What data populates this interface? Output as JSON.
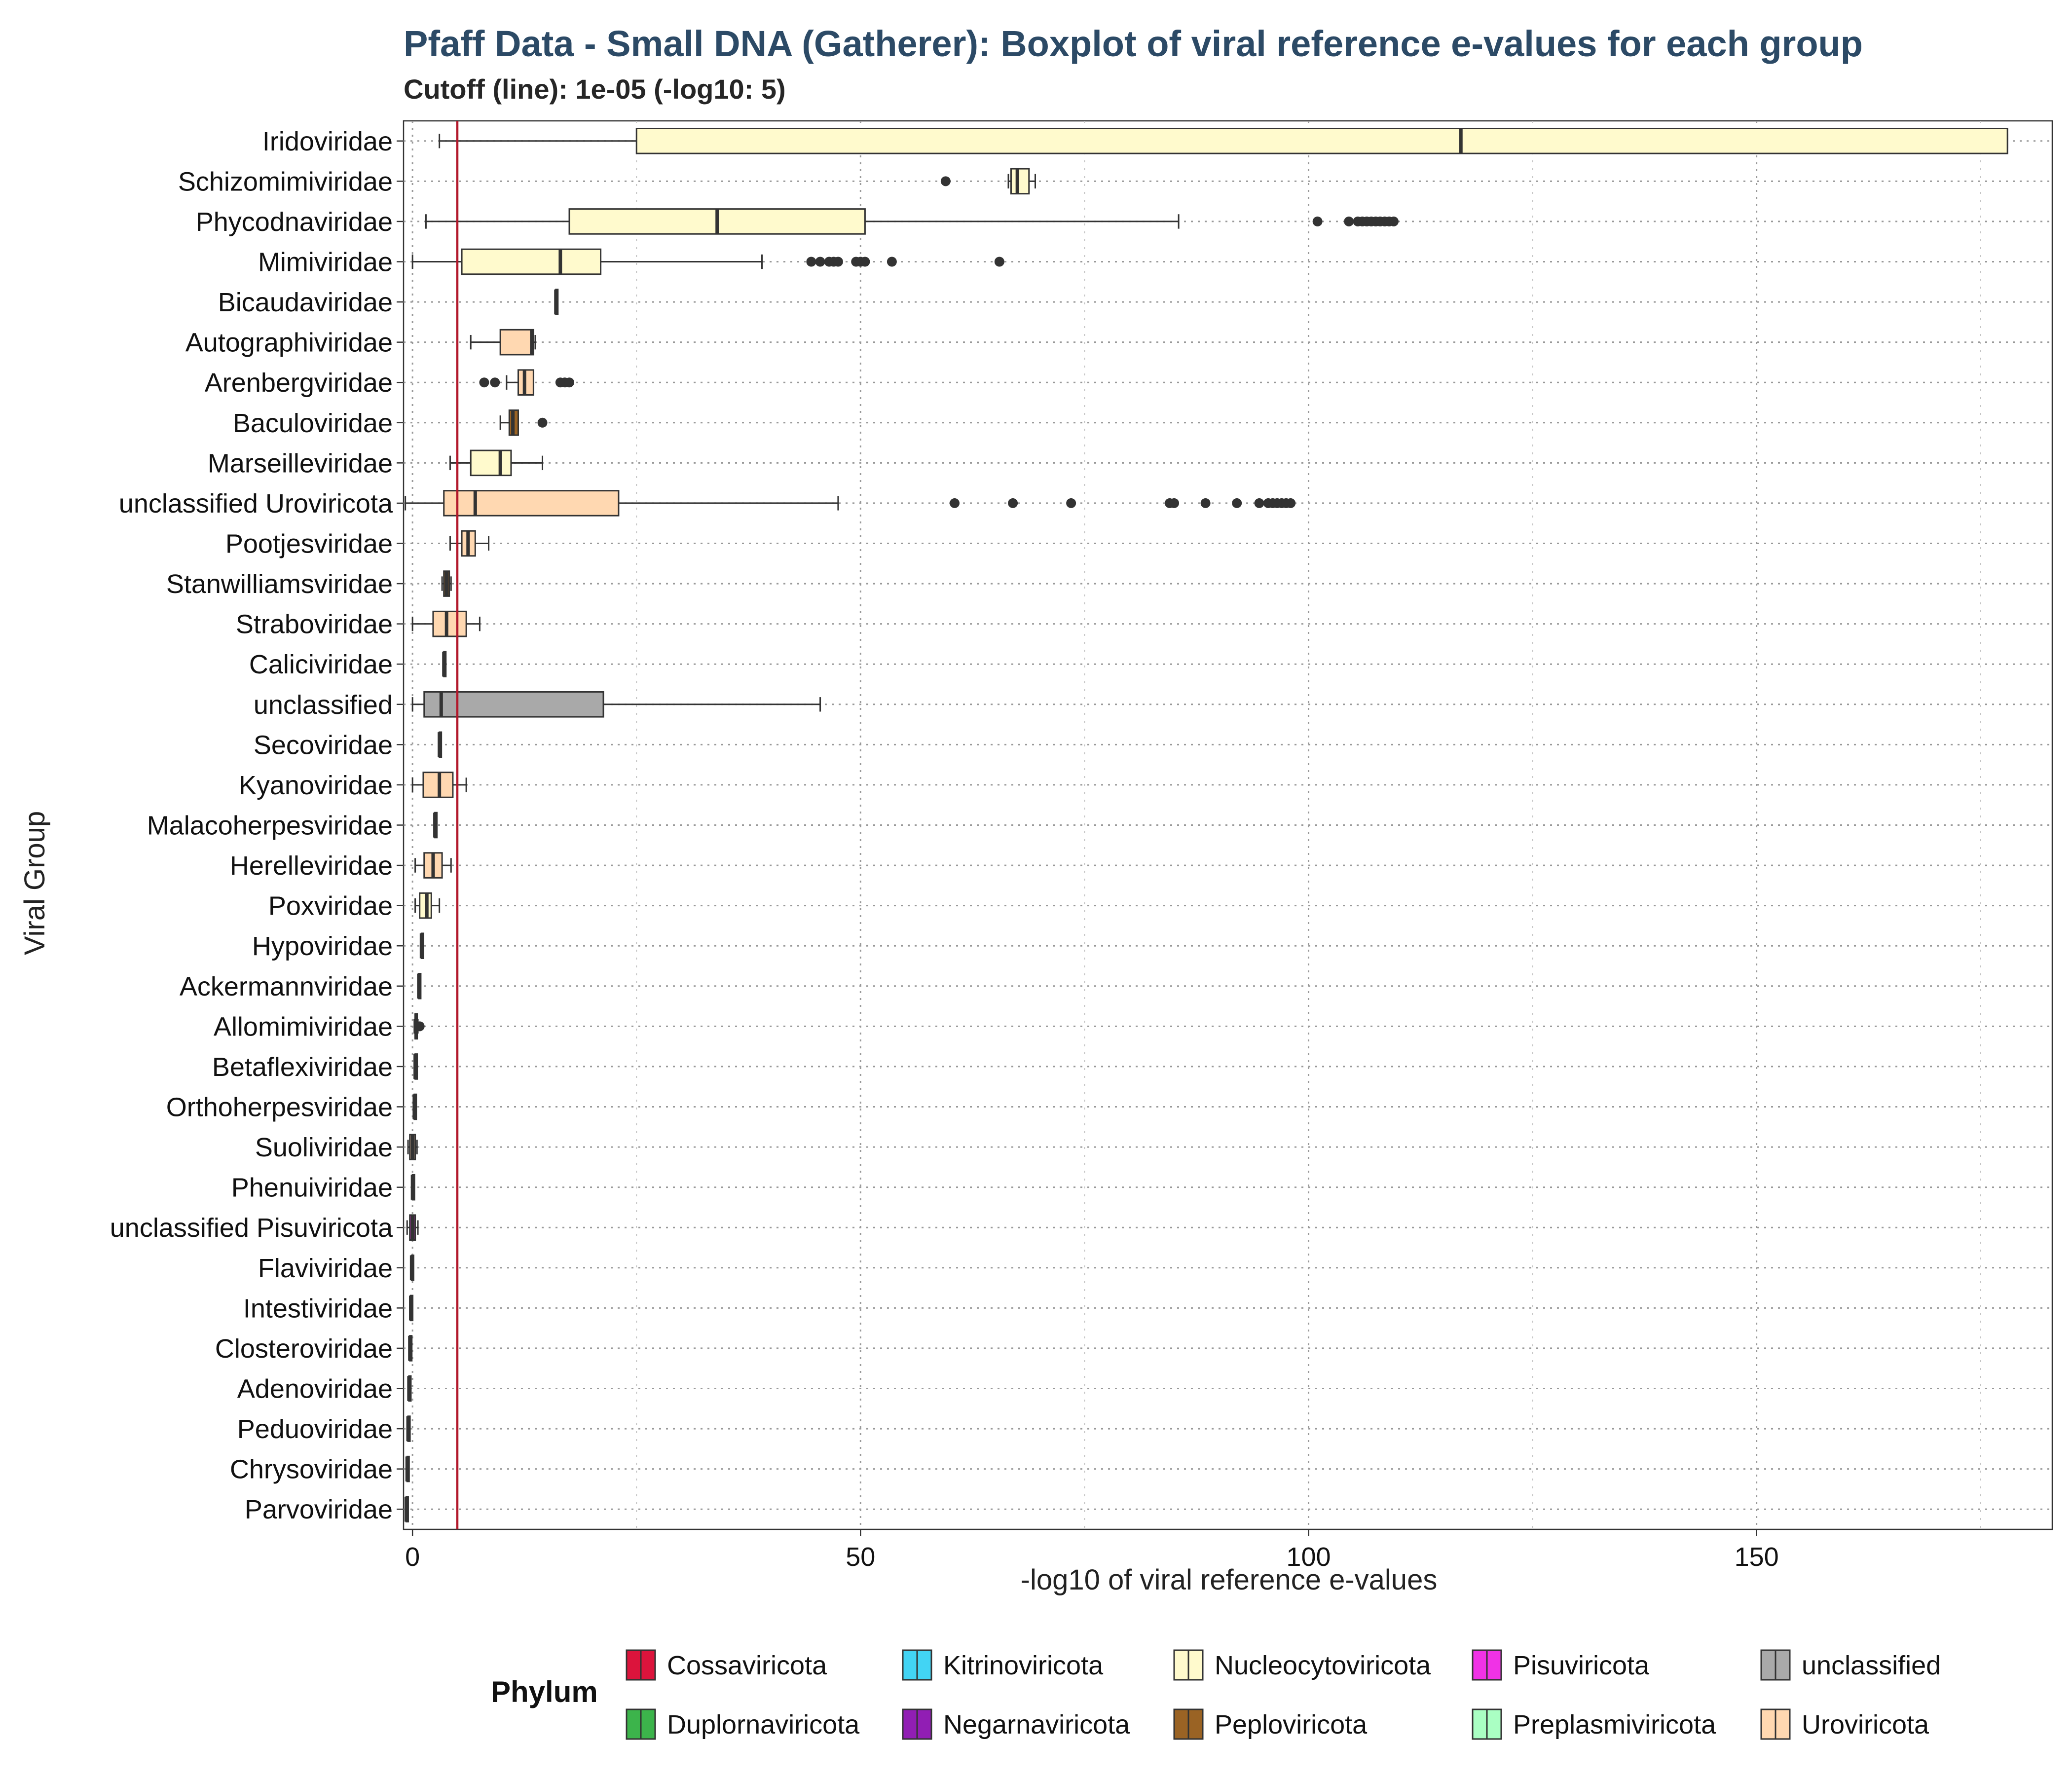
{
  "chart_data": {
    "type": "boxplot",
    "title": "Pfaff Data - Small DNA (Gatherer): Boxplot of viral reference e-values for each group",
    "subtitle": "Cutoff (line): 1e-05 (-log10: 5)",
    "xlabel": "-log10 of viral reference e-values",
    "ylabel": "Viral Group",
    "xlim": [
      -1,
      183
    ],
    "xticks": [
      0,
      50,
      100,
      150
    ],
    "grid": true,
    "cutoff": {
      "value": 5,
      "color": "#B2182B"
    },
    "legend": {
      "title": "Phylum",
      "position": "bottom",
      "items": [
        {
          "name": "Cossaviricota",
          "color": "#DC143C"
        },
        {
          "name": "Duplornaviricota",
          "color": "#3CB44B"
        },
        {
          "name": "Kitrinoviricota",
          "color": "#42D4F4"
        },
        {
          "name": "Negarnaviricota",
          "color": "#911EB4"
        },
        {
          "name": "Nucleocytoviricota",
          "color": "#FFFACD"
        },
        {
          "name": "Peploviricota",
          "color": "#9A6324"
        },
        {
          "name": "Pisuviricota",
          "color": "#F032E6"
        },
        {
          "name": "Preplasmiviricota",
          "color": "#AAFFC3"
        },
        {
          "name": "unclassified",
          "color": "#A9A9A9"
        },
        {
          "name": "Uroviricota",
          "color": "#FFD8B1"
        }
      ]
    },
    "groups": [
      {
        "name": "Iridoviridae",
        "phylum": "Nucleocytoviricota",
        "min": 3,
        "q1": 25,
        "median": 117,
        "q3": 178,
        "max": 178,
        "outliers": []
      },
      {
        "name": "Schizomimiviridae",
        "phylum": "Nucleocytoviricota",
        "min": 66.5,
        "q1": 66.8,
        "median": 67.5,
        "q3": 68.8,
        "max": 69.5,
        "outliers": [
          59.5
        ]
      },
      {
        "name": "Phycodnaviridae",
        "phylum": "Nucleocytoviricota",
        "min": 1.5,
        "q1": 17.5,
        "median": 34,
        "q3": 50.5,
        "max": 85.5,
        "outliers": [
          101,
          104.5,
          105.5,
          106,
          106.5,
          107,
          107.5,
          108,
          108.5,
          109,
          109.5
        ]
      },
      {
        "name": "Mimiviridae",
        "phylum": "Nucleocytoviricota",
        "min": 0,
        "q1": 5.5,
        "median": 16.5,
        "q3": 21,
        "max": 39,
        "outliers": [
          44.5,
          45.5,
          46.5,
          47,
          47.5,
          49.5,
          50,
          50.5,
          53.5,
          65.5
        ]
      },
      {
        "name": "Bicaudaviridae",
        "phylum": "unclassified",
        "min": 16,
        "q1": 16,
        "median": 16,
        "q3": 16,
        "max": 16,
        "outliers": []
      },
      {
        "name": "Autographiviridae",
        "phylum": "Uroviricota",
        "min": 6.5,
        "q1": 9.8,
        "median": 13.3,
        "q3": 13.5,
        "max": 13.7,
        "outliers": []
      },
      {
        "name": "Arenbergviridae",
        "phylum": "Uroviricota",
        "min": 10.5,
        "q1": 11.8,
        "median": 12.5,
        "q3": 13.5,
        "max": 13.5,
        "outliers": [
          8,
          9.2,
          16.5,
          17,
          17.5
        ]
      },
      {
        "name": "Baculoviridae",
        "phylum": "Peploviricota",
        "min": 9.8,
        "q1": 10.8,
        "median": 11.2,
        "q3": 11.8,
        "max": 11.8,
        "outliers": [
          14.5
        ]
      },
      {
        "name": "Marseilleviridae",
        "phylum": "Nucleocytoviricota",
        "min": 4.2,
        "q1": 6.5,
        "median": 9.8,
        "q3": 11,
        "max": 14.5,
        "outliers": []
      },
      {
        "name": "unclassified Uroviricota",
        "phylum": "Uroviricota",
        "min": -0.8,
        "q1": 3.5,
        "median": 7,
        "q3": 23,
        "max": 47.5,
        "outliers": [
          60.5,
          67,
          73.5,
          84.5,
          85,
          88.5,
          92,
          94.5,
          95.5,
          96,
          96.5,
          97,
          97.5,
          98
        ]
      },
      {
        "name": "Pootjesviridae",
        "phylum": "Uroviricota",
        "min": 4.2,
        "q1": 5.5,
        "median": 6.2,
        "q3": 7,
        "max": 8.5,
        "outliers": []
      },
      {
        "name": "Stanwilliamsviridae",
        "phylum": "Peploviricota",
        "min": 3.3,
        "q1": 3.5,
        "median": 3.8,
        "q3": 4.1,
        "max": 4.3,
        "outliers": []
      },
      {
        "name": "Straboviridae",
        "phylum": "Uroviricota",
        "min": 0,
        "q1": 2.3,
        "median": 3.8,
        "q3": 6,
        "max": 7.5,
        "outliers": []
      },
      {
        "name": "Caliciviridae",
        "phylum": "Pisuviricota",
        "min": 3.5,
        "q1": 3.5,
        "median": 3.5,
        "q3": 3.5,
        "max": 3.5,
        "outliers": []
      },
      {
        "name": "unclassified",
        "phylum": "unclassified",
        "min": 0,
        "q1": 1.3,
        "median": 3.2,
        "q3": 21.3,
        "max": 45.5,
        "outliers": []
      },
      {
        "name": "Secoviridae",
        "phylum": "Pisuviricota",
        "min": 3,
        "q1": 3,
        "median": 3,
        "q3": 3,
        "max": 3,
        "outliers": []
      },
      {
        "name": "Kyanoviridae",
        "phylum": "Uroviricota",
        "min": 0,
        "q1": 1.2,
        "median": 3,
        "q3": 4.5,
        "max": 6,
        "outliers": []
      },
      {
        "name": "Malacoherpesviridae",
        "phylum": "Peploviricota",
        "min": 2.5,
        "q1": 2.5,
        "median": 2.5,
        "q3": 2.5,
        "max": 2.5,
        "outliers": []
      },
      {
        "name": "Herelleviridae",
        "phylum": "Uroviricota",
        "min": 0.3,
        "q1": 1.3,
        "median": 2.3,
        "q3": 3.3,
        "max": 4.3,
        "outliers": []
      },
      {
        "name": "Poxviridae",
        "phylum": "Nucleocytoviricota",
        "min": 0.3,
        "q1": 0.8,
        "median": 1.6,
        "q3": 2.1,
        "max": 3,
        "outliers": []
      },
      {
        "name": "Hypoviridae",
        "phylum": "Kitrinoviricota",
        "min": 1,
        "q1": 1,
        "median": 1,
        "q3": 1,
        "max": 1,
        "outliers": []
      },
      {
        "name": "Ackermannviridae",
        "phylum": "Uroviricota",
        "min": 0.7,
        "q1": 0.7,
        "median": 0.7,
        "q3": 0.7,
        "max": 0.7,
        "outliers": []
      },
      {
        "name": "Allomimiviridae",
        "phylum": "Nucleocytoviricota",
        "min": 0.2,
        "q1": 0.3,
        "median": 0.4,
        "q3": 0.5,
        "max": 0.6,
        "outliers": [
          0.8
        ]
      },
      {
        "name": "Betaflexiviridae",
        "phylum": "Kitrinoviricota",
        "min": 0.3,
        "q1": 0.3,
        "median": 0.3,
        "q3": 0.3,
        "max": 0.3,
        "outliers": []
      },
      {
        "name": "Orthoherpesviridae",
        "phylum": "Peploviricota",
        "min": 0.2,
        "q1": 0.2,
        "median": 0.2,
        "q3": 0.2,
        "max": 0.2,
        "outliers": []
      },
      {
        "name": "Suoliviridae",
        "phylum": "Uroviricota",
        "min": -0.5,
        "q1": -0.3,
        "median": 0,
        "q3": 0.3,
        "max": 0.5,
        "outliers": []
      },
      {
        "name": "Phenuiviridae",
        "phylum": "Negarnaviricota",
        "min": 0,
        "q1": 0,
        "median": 0,
        "q3": 0,
        "max": 0,
        "outliers": []
      },
      {
        "name": "unclassified Pisuviricota",
        "phylum": "Pisuviricota",
        "min": -0.6,
        "q1": -0.3,
        "median": 0,
        "q3": 0.3,
        "max": 0.6,
        "outliers": []
      },
      {
        "name": "Flaviviridae",
        "phylum": "Kitrinoviricota",
        "min": -0.1,
        "q1": -0.1,
        "median": -0.1,
        "q3": -0.1,
        "max": -0.1,
        "outliers": []
      },
      {
        "name": "Intestiviridae",
        "phylum": "Uroviricota",
        "min": -0.2,
        "q1": -0.2,
        "median": -0.2,
        "q3": -0.2,
        "max": -0.2,
        "outliers": []
      },
      {
        "name": "Closteroviridae",
        "phylum": "Kitrinoviricota",
        "min": -0.3,
        "q1": -0.3,
        "median": -0.3,
        "q3": -0.3,
        "max": -0.3,
        "outliers": []
      },
      {
        "name": "Adenoviridae",
        "phylum": "Preplasmiviricota",
        "min": -0.4,
        "q1": -0.4,
        "median": -0.4,
        "q3": -0.4,
        "max": -0.4,
        "outliers": []
      },
      {
        "name": "Peduoviridae",
        "phylum": "Uroviricota",
        "min": -0.5,
        "q1": -0.5,
        "median": -0.5,
        "q3": -0.5,
        "max": -0.5,
        "outliers": []
      },
      {
        "name": "Chrysoviridae",
        "phylum": "Duplornaviricota",
        "min": -0.6,
        "q1": -0.6,
        "median": -0.6,
        "q3": -0.6,
        "max": -0.6,
        "outliers": []
      },
      {
        "name": "Parvoviridae",
        "phylum": "Cossaviricota",
        "min": -0.7,
        "q1": -0.7,
        "median": -0.7,
        "q3": -0.7,
        "max": -0.7,
        "outliers": []
      }
    ]
  }
}
